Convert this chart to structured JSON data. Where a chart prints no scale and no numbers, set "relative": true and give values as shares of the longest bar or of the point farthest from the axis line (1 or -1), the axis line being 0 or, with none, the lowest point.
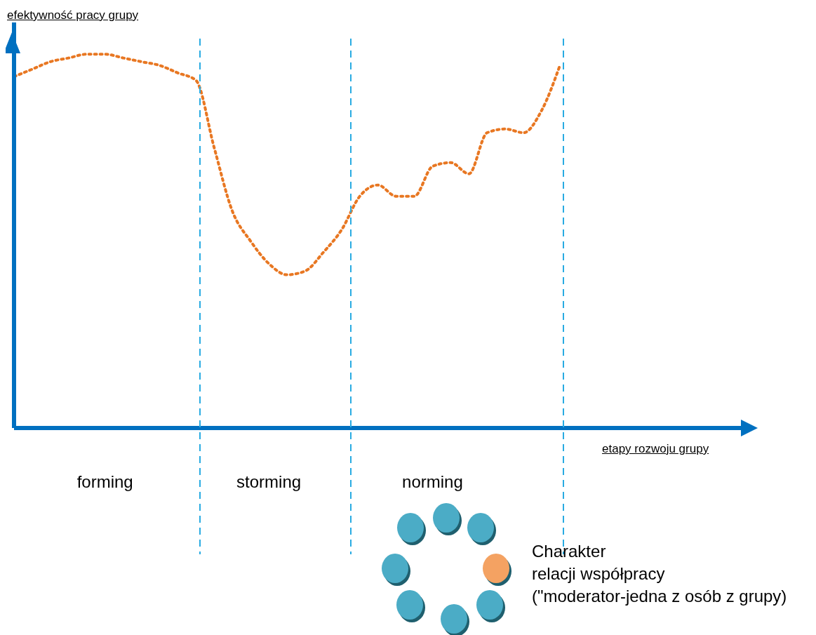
{
  "chart_data": {
    "type": "line",
    "relative": true,
    "ylabel": "efektywność pracy grupy",
    "xlabel": "etapy rozwoju grupy",
    "categories": [
      null,
      null,
      null,
      null,
      null,
      "forming",
      null,
      null,
      null,
      null,
      null,
      null,
      null,
      null,
      "storming",
      null,
      null,
      null,
      null,
      null,
      null,
      null,
      null,
      "norming",
      null,
      null,
      null,
      null,
      null,
      null,
      null
    ],
    "series": [
      {
        "color": "#e87722",
        "values": [
          0.94,
          0.96,
          0.98,
          0.99,
          1.0,
          1.0,
          0.99,
          0.98,
          0.97,
          0.95,
          0.93,
          0.75,
          0.58,
          0.5,
          0.44,
          0.41,
          0.42,
          0.47,
          0.53,
          0.62,
          0.65,
          0.62,
          0.62,
          0.7,
          0.71,
          0.68,
          0.79,
          0.8,
          0.79,
          0.85,
          0.97
        ]
      }
    ],
    "line_style": "dotted",
    "annotations": [
      "Charakter\nrelacji współpracy\n(\"moderator-jedna z osób z grupy)"
    ]
  }
}
